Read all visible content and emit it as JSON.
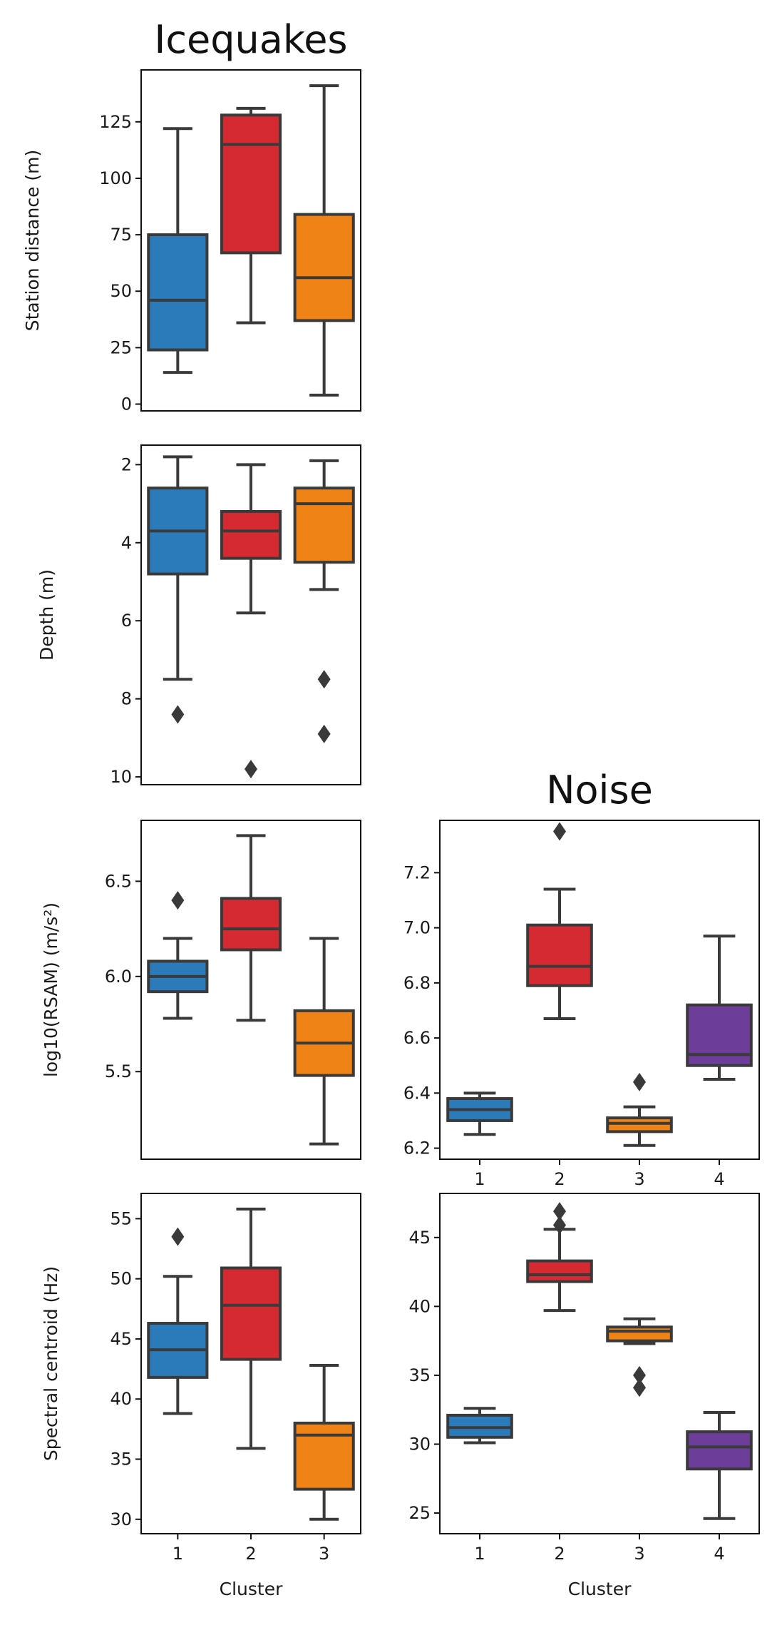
{
  "colors": {
    "1": "#2b7bba",
    "2": "#d62a32",
    "3": "#f08315",
    "4": "#6c3d99",
    "line": "#3a3a3a"
  },
  "chart_data": [
    {
      "type": "box",
      "title": "Icequakes",
      "ylabel": "Station distance (m)",
      "xlabel": "",
      "ylim": [
        -3,
        148
      ],
      "yticks": [
        0,
        25,
        50,
        75,
        100,
        125
      ],
      "ytick_labels": [
        "0",
        "25",
        "50",
        "75",
        "100",
        "125"
      ],
      "categories": [
        "1",
        "2",
        "3"
      ],
      "show_xticks": false,
      "boxes": [
        {
          "cat": "1",
          "whislo": 14,
          "q1": 24,
          "med": 46,
          "q3": 75,
          "whishi": 122,
          "fliers": []
        },
        {
          "cat": "2",
          "whislo": 36,
          "q1": 67,
          "med": 115,
          "q3": 128,
          "whishi": 131,
          "fliers": []
        },
        {
          "cat": "3",
          "whislo": 4,
          "q1": 37,
          "med": 56,
          "q3": 84,
          "whishi": 141,
          "fliers": []
        }
      ]
    },
    {
      "type": "box",
      "title": "",
      "ylabel": "Depth (m)",
      "xlabel": "",
      "inverted": true,
      "ylim": [
        1.5,
        10.2
      ],
      "yticks": [
        2,
        4,
        6,
        8,
        10
      ],
      "ytick_labels": [
        "2",
        "4",
        "6",
        "8",
        "10"
      ],
      "categories": [
        "1",
        "2",
        "3"
      ],
      "show_xticks": false,
      "boxes": [
        {
          "cat": "1",
          "whislo": 1.8,
          "q1": 2.6,
          "med": 3.7,
          "q3": 4.8,
          "whishi": 7.5,
          "fliers": [
            8.4
          ]
        },
        {
          "cat": "2",
          "whislo": 2.0,
          "q1": 3.2,
          "med": 3.7,
          "q3": 4.4,
          "whishi": 5.8,
          "fliers": [
            9.8
          ]
        },
        {
          "cat": "3",
          "whislo": 1.9,
          "q1": 2.6,
          "med": 3.0,
          "q3": 4.5,
          "whishi": 5.2,
          "fliers": [
            7.5,
            8.9
          ]
        }
      ]
    },
    {
      "type": "box",
      "title": "",
      "ylabel": "log10(RSAM) (m/s²)",
      "xlabel": "",
      "ylim": [
        5.04,
        6.82
      ],
      "yticks": [
        5.5,
        6.0,
        6.5
      ],
      "ytick_labels": [
        "5.5",
        "6.0",
        "6.5"
      ],
      "categories": [
        "1",
        "2",
        "3"
      ],
      "show_xticks": false,
      "boxes": [
        {
          "cat": "1",
          "whislo": 5.78,
          "q1": 5.92,
          "med": 6.0,
          "q3": 6.08,
          "whishi": 6.2,
          "fliers": [
            6.4
          ]
        },
        {
          "cat": "2",
          "whislo": 5.77,
          "q1": 6.14,
          "med": 6.25,
          "q3": 6.41,
          "whishi": 6.74,
          "fliers": []
        },
        {
          "cat": "3",
          "whislo": 5.12,
          "q1": 5.48,
          "med": 5.65,
          "q3": 5.82,
          "whishi": 6.2,
          "fliers": []
        }
      ]
    },
    {
      "type": "box",
      "title": "Noise",
      "ylabel": "",
      "xlabel": "",
      "ylim": [
        6.16,
        7.39
      ],
      "yticks": [
        6.2,
        6.4,
        6.6,
        6.8,
        7.0,
        7.2
      ],
      "ytick_labels": [
        "6.2",
        "6.4",
        "6.6",
        "6.8",
        "7.0",
        "7.2"
      ],
      "categories": [
        "1",
        "2",
        "3",
        "4"
      ],
      "show_xticks": true,
      "boxes": [
        {
          "cat": "1",
          "whislo": 6.25,
          "q1": 6.3,
          "med": 6.34,
          "q3": 6.38,
          "whishi": 6.4,
          "fliers": []
        },
        {
          "cat": "2",
          "whislo": 6.67,
          "q1": 6.79,
          "med": 6.86,
          "q3": 7.01,
          "whishi": 7.14,
          "fliers": [
            7.35
          ]
        },
        {
          "cat": "3",
          "whislo": 6.21,
          "q1": 6.26,
          "med": 6.29,
          "q3": 6.31,
          "whishi": 6.35,
          "fliers": [
            6.44
          ]
        },
        {
          "cat": "4",
          "whislo": 6.45,
          "q1": 6.5,
          "med": 6.54,
          "q3": 6.72,
          "whishi": 6.97,
          "fliers": []
        }
      ]
    },
    {
      "type": "box",
      "title": "",
      "ylabel": "Spectral centroid (Hz)",
      "xlabel": "Cluster",
      "ylim": [
        28.8,
        57.1
      ],
      "yticks": [
        30,
        35,
        40,
        45,
        50,
        55
      ],
      "ytick_labels": [
        "30",
        "35",
        "40",
        "45",
        "50",
        "55"
      ],
      "categories": [
        "1",
        "2",
        "3"
      ],
      "show_xticks": true,
      "boxes": [
        {
          "cat": "1",
          "whislo": 38.8,
          "q1": 41.8,
          "med": 44.1,
          "q3": 46.3,
          "whishi": 50.2,
          "fliers": [
            53.5
          ]
        },
        {
          "cat": "2",
          "whislo": 35.9,
          "q1": 43.3,
          "med": 47.8,
          "q3": 50.9,
          "whishi": 55.8,
          "fliers": []
        },
        {
          "cat": "3",
          "whislo": 30.0,
          "q1": 32.5,
          "med": 37.0,
          "q3": 38.0,
          "whishi": 42.8,
          "fliers": []
        }
      ]
    },
    {
      "type": "box",
      "title": "",
      "ylabel": "",
      "xlabel": "Cluster",
      "ylim": [
        23.5,
        48.2
      ],
      "yticks": [
        25,
        30,
        35,
        40,
        45
      ],
      "ytick_labels": [
        "25",
        "30",
        "35",
        "40",
        "45"
      ],
      "categories": [
        "1",
        "2",
        "3",
        "4"
      ],
      "show_xticks": true,
      "boxes": [
        {
          "cat": "1",
          "whislo": 30.1,
          "q1": 30.5,
          "med": 31.2,
          "q3": 32.1,
          "whishi": 32.6,
          "fliers": []
        },
        {
          "cat": "2",
          "whislo": 39.7,
          "q1": 41.8,
          "med": 42.3,
          "q3": 43.3,
          "whishi": 45.6,
          "fliers": [
            45.9,
            46.9
          ]
        },
        {
          "cat": "3",
          "whislo": 37.3,
          "q1": 37.5,
          "med": 38.2,
          "q3": 38.5,
          "whishi": 39.1,
          "fliers": [
            34.1,
            35.0
          ]
        },
        {
          "cat": "4",
          "whislo": 24.6,
          "q1": 28.2,
          "med": 29.8,
          "q3": 30.9,
          "whishi": 32.3,
          "fliers": []
        }
      ]
    }
  ]
}
